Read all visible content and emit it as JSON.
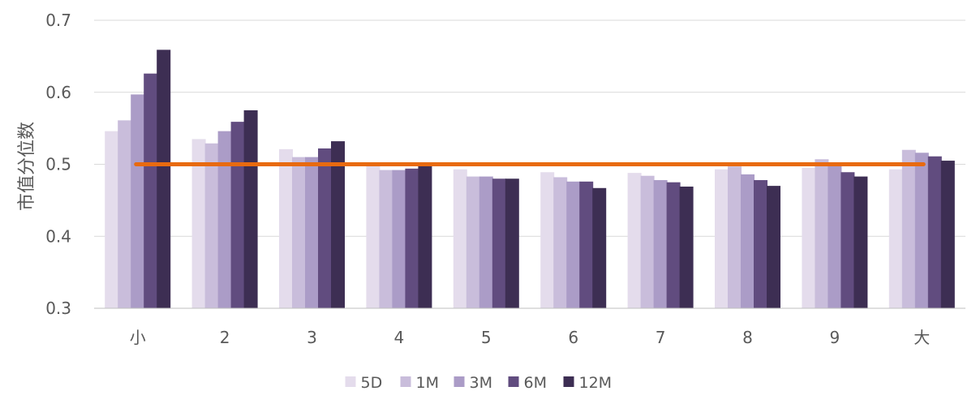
{
  "chart_data": {
    "type": "bar",
    "ylabel": "市值分位数",
    "ylim": [
      0.3,
      0.7
    ],
    "yticks": [
      "0.3",
      "0.4",
      "0.5",
      "0.6",
      "0.7"
    ],
    "grid": true,
    "legend_position": "bottom",
    "categories": [
      "小",
      "2",
      "3",
      "4",
      "5",
      "6",
      "7",
      "8",
      "9",
      "大"
    ],
    "series": [
      {
        "name": "5D",
        "color": "#e4dcec",
        "values": [
          0.546,
          0.535,
          0.521,
          0.5,
          0.493,
          0.489,
          0.488,
          0.493,
          0.495,
          0.493
        ]
      },
      {
        "name": "1M",
        "color": "#c9bddb",
        "values": [
          0.561,
          0.529,
          0.51,
          0.492,
          0.483,
          0.482,
          0.484,
          0.497,
          0.507,
          0.52
        ]
      },
      {
        "name": "3M",
        "color": "#ab9cc7",
        "values": [
          0.597,
          0.546,
          0.51,
          0.492,
          0.483,
          0.476,
          0.478,
          0.486,
          0.501,
          0.516
        ]
      },
      {
        "name": "6M",
        "color": "#614c7f",
        "values": [
          0.626,
          0.559,
          0.522,
          0.494,
          0.48,
          0.476,
          0.475,
          0.478,
          0.489,
          0.511
        ]
      },
      {
        "name": "12M",
        "color": "#3d2e53",
        "values": [
          0.659,
          0.575,
          0.532,
          0.5,
          0.48,
          0.467,
          0.469,
          0.47,
          0.483,
          0.505
        ]
      }
    ],
    "reference_line": {
      "value": 0.5,
      "color": "#e86a10"
    }
  }
}
